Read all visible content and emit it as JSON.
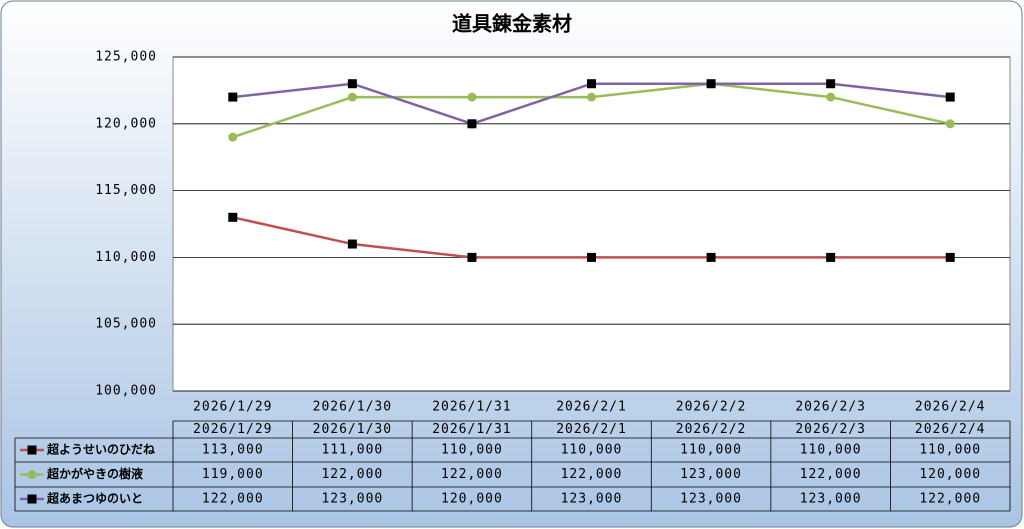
{
  "chart_data": {
    "type": "line",
    "title": "道具錬金素材",
    "categories": [
      "2026/1/29",
      "2026/1/30",
      "2026/1/31",
      "2026/2/1",
      "2026/2/2",
      "2026/2/3",
      "2026/2/4"
    ],
    "series": [
      {
        "name": "超ようせいのひだね",
        "color": "#c0504d",
        "marker": "square",
        "marker_color": "#000000",
        "values": [
          113000,
          111000,
          110000,
          110000,
          110000,
          110000,
          110000
        ],
        "value_labels": [
          "113,000",
          "111,000",
          "110,000",
          "110,000",
          "110,000",
          "110,000",
          "110,000"
        ]
      },
      {
        "name": "超かがやきの樹液",
        "color": "#9bbb59",
        "marker": "circle",
        "marker_color": "#9bbb59",
        "values": [
          119000,
          122000,
          122000,
          122000,
          123000,
          122000,
          120000
        ],
        "value_labels": [
          "119,000",
          "122,000",
          "122,000",
          "122,000",
          "123,000",
          "122,000",
          "120,000"
        ]
      },
      {
        "name": "超あまつゆのいと",
        "color": "#8064a2",
        "marker": "square",
        "marker_color": "#000000",
        "values": [
          122000,
          123000,
          120000,
          123000,
          123000,
          123000,
          122000
        ],
        "value_labels": [
          "122,000",
          "123,000",
          "120,000",
          "123,000",
          "123,000",
          "123,000",
          "122,000"
        ]
      }
    ],
    "ylim": [
      100000,
      125000
    ],
    "yticks": [
      {
        "value": 100000,
        "label": "100,000"
      },
      {
        "value": 105000,
        "label": "105,000"
      },
      {
        "value": 110000,
        "label": "110,000"
      },
      {
        "value": 115000,
        "label": "115,000"
      },
      {
        "value": 120000,
        "label": "120,000"
      },
      {
        "value": 125000,
        "label": "125,000"
      }
    ],
    "grid": true,
    "data_table": true
  }
}
